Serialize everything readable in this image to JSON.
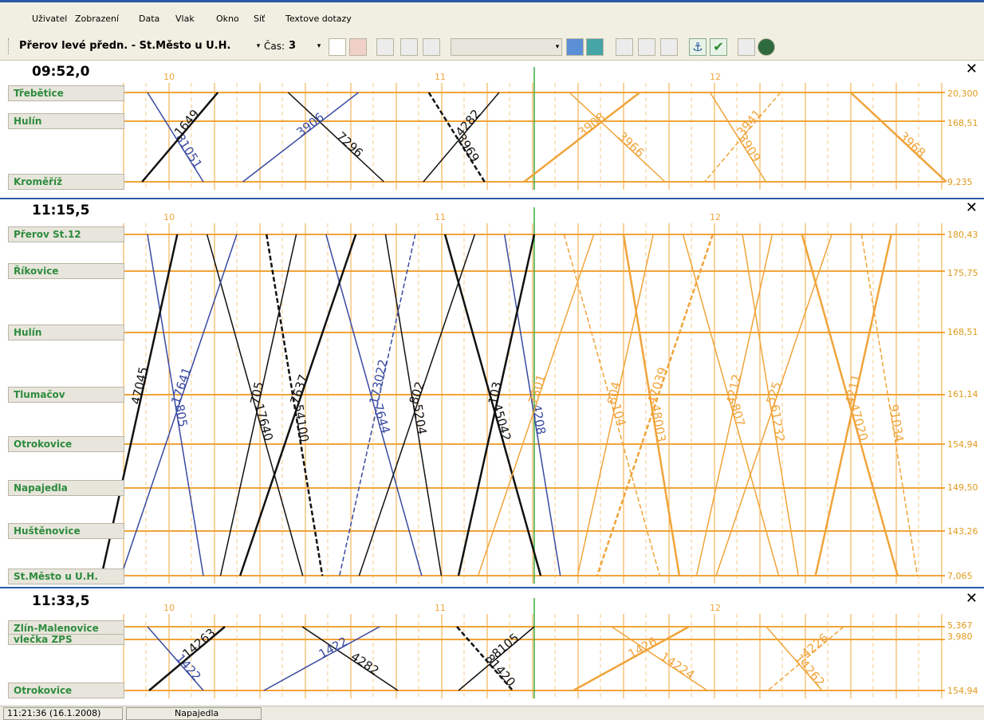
{
  "menu": [
    "Uživatel",
    "Zobrazení",
    "Data",
    "Vlak",
    "Okno",
    "Síť",
    "Textove dotazy"
  ],
  "toolbar": {
    "route": "Přerov levé předn. - St.Město u U.H.",
    "time_label": "Čas:",
    "time_value": "3",
    "dropdown_arrow": "▾",
    "icons": [
      "station-plan-icon",
      "station-table-icon",
      "clock-icon",
      "train-table-icon",
      "train-list-icon",
      "map-train-icon",
      "map-pru-icon",
      "track-tool-icon",
      "track-tool-icon",
      "track-tool-icon",
      "anchor-icon",
      "check-icon",
      "export-icon",
      "globe-icon"
    ]
  },
  "panels": [
    {
      "time": "09:52,0",
      "close": "✕",
      "hours": [
        "10",
        "11",
        "12"
      ],
      "stations": [
        "Třebětice",
        "Hulín",
        "Kroměříž"
      ],
      "km": [
        "20,300",
        "168,51",
        "9,235"
      ],
      "train_labels": [
        "81051",
        "1649",
        "7296",
        "3906",
        "3969",
        "4282",
        "3966",
        "3908",
        "3909",
        "3941",
        "3968"
      ]
    },
    {
      "time": "11:15,5",
      "close": "✕",
      "hours": [
        "10",
        "11",
        "12"
      ],
      "stations": [
        "Přerov St.12",
        "Říkovice",
        "Hulín",
        "Tlumačov",
        "Otrokovice",
        "Napajedla",
        "Huštěnovice",
        "St.Město u U.H."
      ],
      "km": [
        "180,43",
        "175,75",
        "168,51",
        "161,14",
        "154,94",
        "149,50",
        "143,26",
        "7,065"
      ],
      "train_labels": [
        "805",
        "47045",
        "17640",
        "17641",
        "54100",
        "705",
        "7644",
        "7637",
        "5204",
        "173022",
        "45042",
        "802",
        "4208",
        "103",
        "104",
        "7301",
        "48003",
        "804",
        "807",
        "47039",
        "61232",
        "4212",
        "47020",
        "525",
        "91034",
        "4211"
      ]
    },
    {
      "time": "11:33,5",
      "close": "✕",
      "hours": [
        "10",
        "11",
        "12"
      ],
      "stations": [
        "Zlín-Malenovice",
        "vlečka ZPS",
        "Otrokovice"
      ],
      "km": [
        "5,367",
        "3,980",
        "154,94"
      ],
      "train_labels": [
        "1422",
        "14263",
        "4282",
        "1422",
        "81420",
        "8105",
        "14224",
        "1426",
        "14262",
        "4226"
      ]
    }
  ],
  "status": {
    "time": "11:21:36 (16.1.2008)",
    "station": "Napajedla"
  },
  "colors": {
    "grid": "#f0a43a",
    "black_train": "#111111",
    "blue_train": "#3a4aa0",
    "orange_train": "#f0a43a",
    "station_text": "#2e8b3e",
    "now_line": "#3fae3f"
  }
}
